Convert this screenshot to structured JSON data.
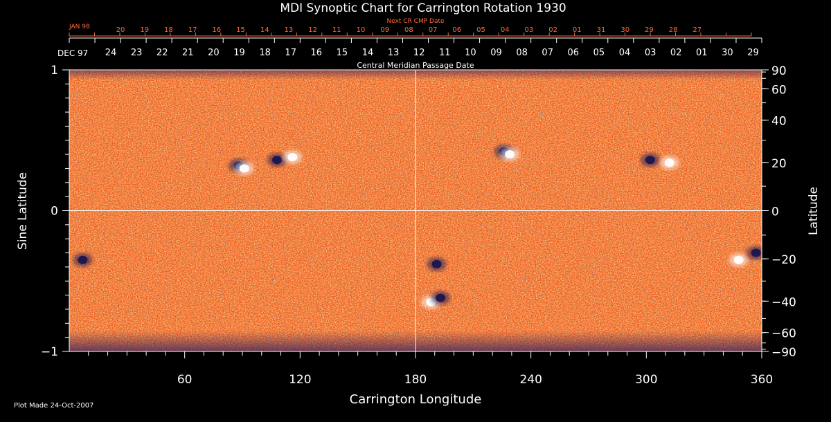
{
  "chart_data": {
    "type": "heatmap",
    "title": "MDI Synoptic Chart for Carrington Rotation 1930",
    "top_axis_label": "Next CR CMP Date",
    "cmp_axis_label": "Central Meridian Passage Date",
    "xlabel": "Carrington Longitude",
    "ylabel_left": "Sine Latitude",
    "ylabel_right": "Latitude",
    "footer": "Plot Made 24-Oct-2007",
    "xlim": [
      0,
      360
    ],
    "ylim": [
      -1,
      1
    ],
    "x_ticks": [
      "60",
      "120",
      "180",
      "240",
      "300",
      "360"
    ],
    "x_tick_values": [
      60,
      120,
      180,
      240,
      300,
      360
    ],
    "y_ticks_left": [
      "1",
      "0",
      "−1"
    ],
    "y_tick_values_left": [
      1,
      0,
      -1
    ],
    "y_ticks_right": [
      "90",
      "60",
      "40",
      "20",
      "0",
      "−20",
      "−40",
      "−60",
      "−90"
    ],
    "y_tick_values_right": [
      90,
      60,
      40,
      20,
      0,
      -20,
      -40,
      -60,
      -90
    ],
    "cmp_start_label": "DEC 97",
    "cmp_dates": [
      "24",
      "23",
      "22",
      "21",
      "20",
      "19",
      "18",
      "17",
      "16",
      "15",
      "14",
      "13",
      "12",
      "11",
      "10",
      "09",
      "08",
      "07",
      "06",
      "05",
      "04",
      "03",
      "02",
      "01",
      "30",
      "29"
    ],
    "next_start_label": "JAN 98",
    "next_dates": [
      "20",
      "19",
      "18",
      "17",
      "16",
      "15",
      "14",
      "13",
      "12",
      "11",
      "10",
      "09",
      "08",
      "07",
      "06",
      "05",
      "04",
      "03",
      "02",
      "01",
      "31",
      "30",
      "29",
      "28",
      "27"
    ],
    "grid": {
      "vertical_at": 180,
      "horizontal_at": 0
    },
    "colormap": {
      "negative": "#1a1550",
      "background": "#f05518",
      "positive": "#ffffff"
    },
    "regions": [
      {
        "lon": 88,
        "sinlat": 0.32,
        "polarity": "negative"
      },
      {
        "lon": 91,
        "sinlat": 0.3,
        "polarity": "positive"
      },
      {
        "lon": 108,
        "sinlat": 0.36,
        "polarity": "negative"
      },
      {
        "lon": 116,
        "sinlat": 0.38,
        "polarity": "positive"
      },
      {
        "lon": 226,
        "sinlat": 0.42,
        "polarity": "negative"
      },
      {
        "lon": 229,
        "sinlat": 0.4,
        "polarity": "positive"
      },
      {
        "lon": 302,
        "sinlat": 0.36,
        "polarity": "negative"
      },
      {
        "lon": 312,
        "sinlat": 0.34,
        "polarity": "positive"
      },
      {
        "lon": 191,
        "sinlat": -0.38,
        "polarity": "negative"
      },
      {
        "lon": 188,
        "sinlat": -0.65,
        "polarity": "positive"
      },
      {
        "lon": 193,
        "sinlat": -0.62,
        "polarity": "negative"
      },
      {
        "lon": 348,
        "sinlat": -0.35,
        "polarity": "positive"
      },
      {
        "lon": 357,
        "sinlat": -0.3,
        "polarity": "negative"
      },
      {
        "lon": 7,
        "sinlat": -0.35,
        "polarity": "negative"
      }
    ]
  }
}
